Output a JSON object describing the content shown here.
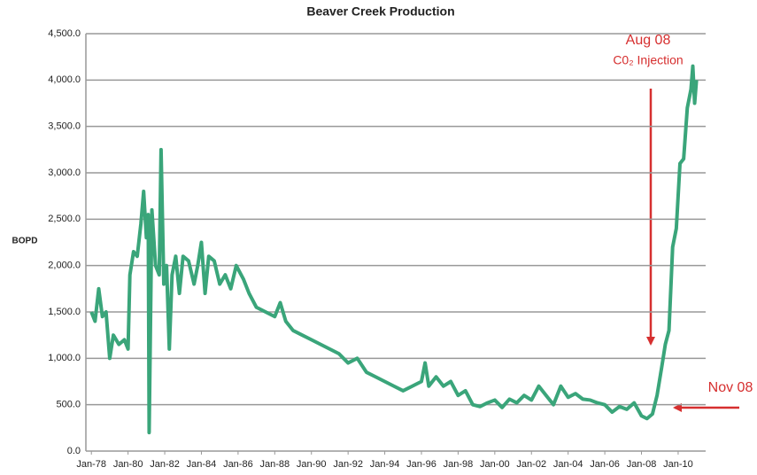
{
  "chart_data": {
    "type": "line",
    "title": "Beaver Creek Production",
    "y_label": "BOPD",
    "annotations": [
      "Aug 08",
      "C0₂ Injection",
      "Nov 08"
    ],
    "xlim": [
      1977.7,
      2011.5
    ],
    "xticks": [
      {
        "value": 1978,
        "label": "Jan-78"
      },
      {
        "value": 1980,
        "label": "Jan-80"
      },
      {
        "value": 1982,
        "label": "Jan-82"
      },
      {
        "value": 1984,
        "label": "Jan-84"
      },
      {
        "value": 1986,
        "label": "Jan-86"
      },
      {
        "value": 1988,
        "label": "Jan-88"
      },
      {
        "value": 1990,
        "label": "Jan-90"
      },
      {
        "value": 1992,
        "label": "Jan-92"
      },
      {
        "value": 1994,
        "label": "Jan-94"
      },
      {
        "value": 1996,
        "label": "Jan-96"
      },
      {
        "value": 1998,
        "label": "Jan-98"
      },
      {
        "value": 2000,
        "label": "Jan-00"
      },
      {
        "value": 2002,
        "label": "Jan-02"
      },
      {
        "value": 2004,
        "label": "Jan-04"
      },
      {
        "value": 2006,
        "label": "Jan-06"
      },
      {
        "value": 2008,
        "label": "Jan-08"
      },
      {
        "value": 2010,
        "label": "Jan-10"
      }
    ],
    "ylim": [
      0,
      4500
    ],
    "yticks": [
      {
        "value": 0,
        "label": "0.0"
      },
      {
        "value": 500,
        "label": "500.0"
      },
      {
        "value": 1000,
        "label": "1,000.0"
      },
      {
        "value": 1500,
        "label": "1,500.0"
      },
      {
        "value": 2000,
        "label": "2,000.0"
      },
      {
        "value": 2500,
        "label": "2,500.0"
      },
      {
        "value": 3000,
        "label": "3,000.0"
      },
      {
        "value": 3500,
        "label": "3,500.0"
      },
      {
        "value": 4000,
        "label": "4,000.0"
      },
      {
        "value": 4500,
        "label": "4,500.0"
      }
    ],
    "grid": true,
    "color": "#3aa57a",
    "x": [
      1978.0,
      1978.2,
      1978.4,
      1978.6,
      1978.8,
      1979.0,
      1979.2,
      1979.5,
      1979.8,
      1980.0,
      1980.1,
      1980.3,
      1980.5,
      1980.7,
      1980.85,
      1981.0,
      1981.1,
      1981.15,
      1981.3,
      1981.5,
      1981.7,
      1981.8,
      1981.95,
      1982.1,
      1982.25,
      1982.4,
      1982.6,
      1982.8,
      1983.0,
      1983.3,
      1983.6,
      1983.8,
      1984.0,
      1984.2,
      1984.4,
      1984.7,
      1985.0,
      1985.3,
      1985.6,
      1985.9,
      1986.3,
      1986.6,
      1987.0,
      1987.5,
      1988.0,
      1988.3,
      1988.6,
      1989.0,
      1989.5,
      1990.0,
      1990.5,
      1991.0,
      1991.5,
      1992.0,
      1992.5,
      1993.0,
      1993.5,
      1994.0,
      1994.5,
      1995.0,
      1995.5,
      1996.0,
      1996.2,
      1996.4,
      1996.8,
      1997.2,
      1997.6,
      1998.0,
      1998.4,
      1998.8,
      1999.2,
      1999.6,
      2000.0,
      2000.4,
      2000.8,
      2001.2,
      2001.6,
      2002.0,
      2002.4,
      2002.8,
      2003.2,
      2003.6,
      2004.0,
      2004.4,
      2004.8,
      2005.2,
      2005.6,
      2006.0,
      2006.4,
      2006.8,
      2007.2,
      2007.6,
      2008.0,
      2008.3,
      2008.6,
      2008.85,
      2009.1,
      2009.3,
      2009.5,
      2009.7,
      2009.9,
      2010.1,
      2010.3,
      2010.5,
      2010.7,
      2010.8,
      2010.9,
      2011.0
    ],
    "values": [
      1500,
      1400,
      1750,
      1450,
      1500,
      1000,
      1250,
      1150,
      1200,
      1100,
      1900,
      2150,
      2100,
      2450,
      2800,
      2300,
      2550,
      200,
      2600,
      2000,
      1900,
      3250,
      1800,
      2000,
      1100,
      1900,
      2100,
      1700,
      2100,
      2050,
      1800,
      2000,
      2250,
      1700,
      2100,
      2050,
      1800,
      1900,
      1750,
      2000,
      1850,
      1700,
      1550,
      1500,
      1450,
      1600,
      1400,
      1300,
      1250,
      1200,
      1150,
      1100,
      1050,
      950,
      1000,
      850,
      800,
      750,
      700,
      650,
      700,
      750,
      950,
      700,
      800,
      700,
      750,
      600,
      650,
      500,
      480,
      520,
      550,
      470,
      560,
      520,
      600,
      550,
      700,
      600,
      500,
      700,
      580,
      620,
      560,
      550,
      520,
      500,
      420,
      480,
      450,
      520,
      380,
      350,
      400,
      600,
      900,
      1150,
      1300,
      2200,
      2400,
      3100,
      3150,
      3700,
      3900,
      4150,
      3750,
      4000
    ]
  }
}
